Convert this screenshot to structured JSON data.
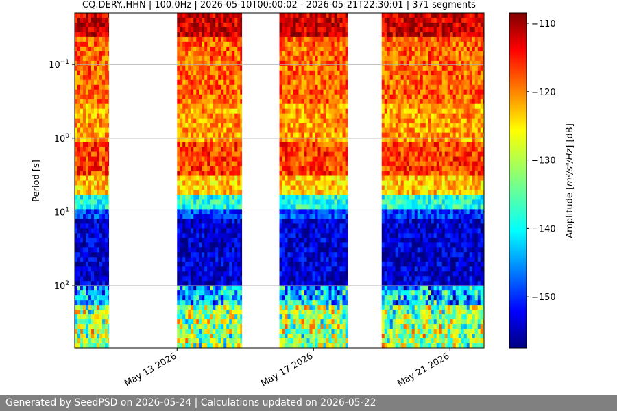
{
  "chart_data": {
    "type": "heatmap",
    "title": "CQ.DERY..HHN | 100.0Hz | 2026-05-10T00:00:02 - 2026-05-21T22:30:01 | 371 segments",
    "xlabel": "",
    "ylabel": "Period [s]",
    "x_range": [
      "2026-05-10",
      "2026-05-22"
    ],
    "y_scale": "log",
    "y_range_s": [
      0.02,
      700
    ],
    "y_inverted": true,
    "y_ticks": [
      {
        "value": 0.1,
        "base": "10",
        "exp": "−1"
      },
      {
        "value": 1,
        "base": "10",
        "exp": "0"
      },
      {
        "value": 10,
        "base": "10",
        "exp": "1"
      },
      {
        "value": 100,
        "base": "10",
        "exp": "2"
      }
    ],
    "x_ticks": [
      {
        "date": "2026-05-13",
        "label": "May 13 2026"
      },
      {
        "date": "2026-05-17",
        "label": "May 17 2026"
      },
      {
        "date": "2026-05-21",
        "label": "May 21 2026"
      }
    ],
    "grid": "horizontal",
    "colormap": "jet",
    "data_segments": [
      {
        "start": "2026-05-10",
        "end": "2026-05-11"
      },
      {
        "start": "2026-05-13",
        "end": "2026-05-14.9"
      },
      {
        "start": "2026-05-16",
        "end": "2026-05-18"
      },
      {
        "start": "2026-05-19",
        "end": "2026-05-22"
      }
    ],
    "colorbar": {
      "label_prefix": "Amplitude [",
      "label_unit": "m²/s⁴/Hz",
      "label_suffix": "] [dB]",
      "range_db": [
        -157.5,
        -108.5
      ],
      "ticks": [
        {
          "value": -110,
          "label": "−110"
        },
        {
          "value": -120,
          "label": "−120"
        },
        {
          "value": -130,
          "label": "−130"
        },
        {
          "value": -140,
          "label": "−140"
        },
        {
          "value": -150,
          "label": "−150"
        }
      ]
    }
  },
  "footer": {
    "text": "Generated by SeedPSD on 2026-05-24 | Calculations updated on 2026-05-22"
  }
}
